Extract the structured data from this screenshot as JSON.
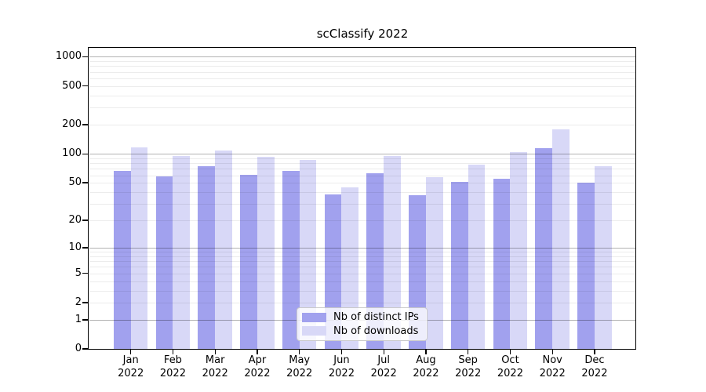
{
  "chart_data": {
    "type": "bar",
    "title": "scClassify 2022",
    "categories": [
      "Jan 2022",
      "Feb 2022",
      "Mar 2022",
      "Apr 2022",
      "May 2022",
      "Jun 2022",
      "Jul 2022",
      "Aug 2022",
      "Sep 2022",
      "Oct 2022",
      "Nov 2022",
      "Dec 2022"
    ],
    "x_tick_labels": [
      [
        "Jan",
        "2022"
      ],
      [
        "Feb",
        "2022"
      ],
      [
        "Mar",
        "2022"
      ],
      [
        "Apr",
        "2022"
      ],
      [
        "May",
        "2022"
      ],
      [
        "Jun",
        "2022"
      ],
      [
        "Jul",
        "2022"
      ],
      [
        "Aug",
        "2022"
      ],
      [
        "Sep",
        "2022"
      ],
      [
        "Oct",
        "2022"
      ],
      [
        "Nov",
        "2022"
      ],
      [
        "Dec",
        "2022"
      ]
    ],
    "series": [
      {
        "name": "Nb of distinct IPs",
        "color": "#a1a1ee",
        "values": [
          66,
          58,
          74,
          61,
          67,
          38,
          63,
          37,
          51,
          55,
          115,
          50
        ]
      },
      {
        "name": "Nb of downloads",
        "color": "#d8d8f7",
        "values": [
          117,
          95,
          108,
          94,
          86,
          45,
          95,
          57,
          77,
          105,
          179,
          74
        ]
      }
    ],
    "y_axis": {
      "scale": "symlog",
      "ticks": [
        0,
        1,
        2,
        5,
        10,
        20,
        50,
        100,
        200,
        500,
        1000
      ],
      "range": [
        0,
        1000
      ],
      "major_gridlines": [
        1,
        10,
        100,
        1000
      ],
      "grid": "horizontal major+minor, drawn over bars"
    },
    "legend": {
      "position": "bottom-center",
      "entries": [
        {
          "label": "Nb of distinct IPs",
          "color": "#a1a1ee"
        },
        {
          "label": "Nb of downloads",
          "color": "#d8d8f7"
        }
      ]
    },
    "background_color": "#ffffff"
  }
}
